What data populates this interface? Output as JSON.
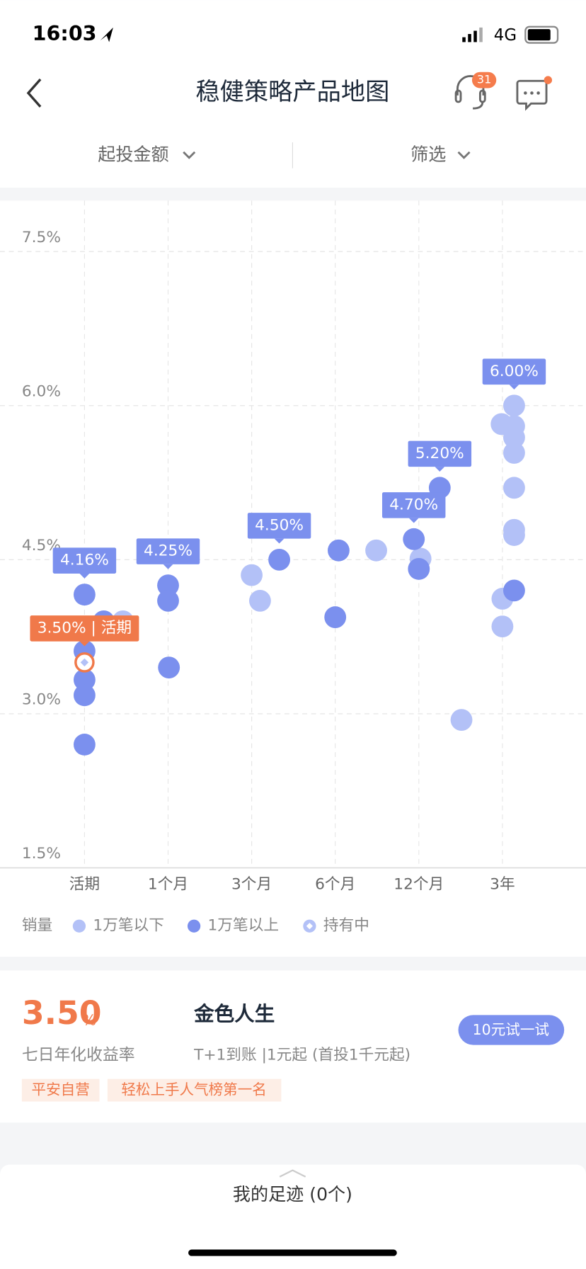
{
  "status_bar": {
    "time": "16:03",
    "network": "4G"
  },
  "header": {
    "title": "稳健策略产品地图",
    "badge": "31"
  },
  "filters": [
    "起投金额",
    "筛选"
  ],
  "chart_data": {
    "type": "scatter",
    "xlim": [
      -0.75,
      6.0
    ],
    "ylim": [
      1.5,
      7.5
    ],
    "xticks": [
      {
        "value": 0,
        "label": "活期"
      },
      {
        "value": 1,
        "label": "1个月"
      },
      {
        "value": 2,
        "label": "3个月"
      },
      {
        "value": 3,
        "label": "6个月"
      },
      {
        "value": 4,
        "label": "12个月"
      },
      {
        "value": 5,
        "label": "3年"
      }
    ],
    "yticks": [
      {
        "value": 1.5,
        "label": "1.5%"
      },
      {
        "value": 3.0,
        "label": "3.0%"
      },
      {
        "value": 4.5,
        "label": "4.5%"
      },
      {
        "value": 6.0,
        "label": "6.0%"
      },
      {
        "value": 7.5,
        "label": "7.5%"
      }
    ],
    "grid": true,
    "legend_title": "销量",
    "series": [
      {
        "name": "1万笔以下",
        "color": "#b3c1f7",
        "marker": "circle",
        "x": [
          0.46,
          2.0,
          2.1,
          3.49,
          4.02,
          4.51,
          5.14,
          4.99,
          5.14,
          5.14,
          5.14,
          5.14,
          5.14,
          5.14,
          5.0,
          5.0
        ],
        "y": [
          3.9,
          4.35,
          4.1,
          4.59,
          4.51,
          2.94,
          6.0,
          5.82,
          5.8,
          5.69,
          5.54,
          5.2,
          4.79,
          4.74,
          4.12,
          3.85
        ]
      },
      {
        "name": "1万笔以上",
        "color": "#7b90ee",
        "marker": "circle",
        "x": [
          0,
          0.23,
          0,
          0,
          0,
          0,
          1,
          1,
          1.01,
          2.33,
          3.04,
          3.0,
          3.94,
          4.0,
          4.25,
          5.14
        ],
        "y": [
          4.16,
          3.9,
          3.61,
          3.33,
          3.18,
          2.7,
          4.25,
          4.1,
          3.45,
          4.5,
          4.59,
          3.94,
          4.7,
          4.41,
          5.2,
          4.2
        ]
      },
      {
        "name": "持有中",
        "color": "#b3c1f7",
        "marker": "diamond",
        "x": [
          0
        ],
        "y": [
          3.5
        ]
      }
    ],
    "annotations": [
      {
        "text": "4.16%",
        "x": 0,
        "y": 4.16,
        "color": "#7b90ee"
      },
      {
        "text": "4.25%",
        "x": 1,
        "y": 4.25,
        "color": "#7b90ee"
      },
      {
        "text": "4.50%",
        "x": 2.33,
        "y": 4.5,
        "color": "#7b90ee"
      },
      {
        "text": "4.70%",
        "x": 3.94,
        "y": 4.7,
        "color": "#7b90ee"
      },
      {
        "text": "5.20%",
        "x": 4.25,
        "y": 5.2,
        "color": "#7b90ee"
      },
      {
        "text": "6.00%",
        "x": 5.14,
        "y": 6.0,
        "color": "#7b90ee"
      },
      {
        "text": "3.50% | 活期",
        "x": 0,
        "y": 3.5,
        "color": "#f0794a"
      }
    ]
  },
  "product": {
    "rate": "3.50",
    "rate_unit": "%",
    "rate_label": "七日年化收益率",
    "name": "金色人生",
    "desc": "T+1到账 |1元起 (首投1千元起)",
    "button": "10元试一试",
    "tags": [
      "平安自营",
      "轻松上手人气榜第一名"
    ]
  },
  "footer": {
    "text": "我的足迹 (0个)"
  }
}
